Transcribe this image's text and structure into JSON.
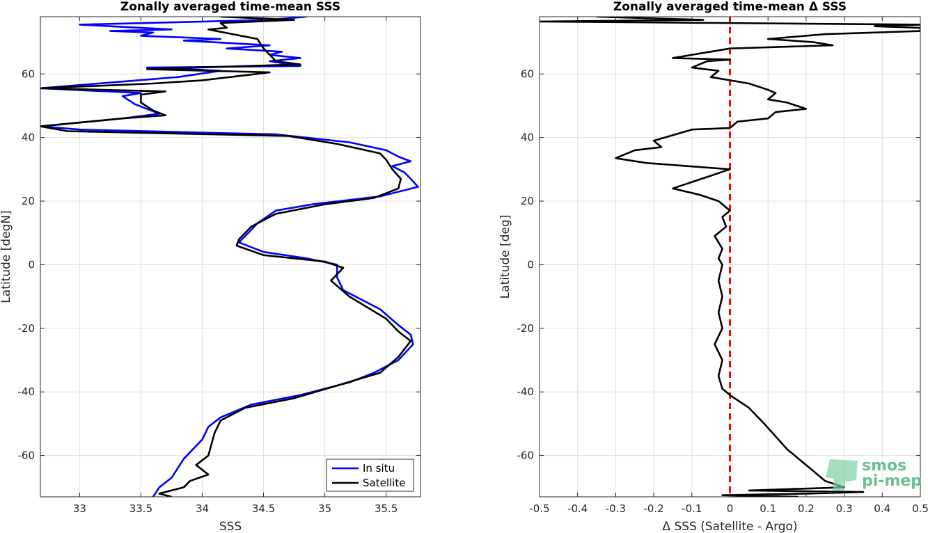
{
  "chart_data": [
    {
      "type": "line",
      "title": "Zonally averaged time-mean SSS",
      "xlabel": "SSS",
      "ylabel": "Latitude [degN]",
      "xlim": [
        32.68,
        35.78
      ],
      "ylim": [
        -73,
        78
      ],
      "xticks": [
        33,
        33.5,
        34,
        34.5,
        35,
        35.5
      ],
      "yticks": [
        -60,
        -40,
        -20,
        0,
        20,
        40,
        60
      ],
      "grid": true,
      "legend_position": "bottom-right",
      "series": [
        {
          "name": "In situ",
          "color": "#0000ff",
          "points": [
            [
              34.85,
              78
            ],
            [
              34.55,
              77
            ],
            [
              33.0,
              75.5
            ],
            [
              33.75,
              74
            ],
            [
              33.25,
              73.5
            ],
            [
              33.6,
              73
            ],
            [
              33.5,
              72
            ],
            [
              34.15,
              71
            ],
            [
              33.85,
              70.5
            ],
            [
              34.55,
              69
            ],
            [
              34.2,
              68
            ],
            [
              34.65,
              67
            ],
            [
              34.55,
              66
            ],
            [
              34.8,
              65
            ],
            [
              34.55,
              64
            ],
            [
              34.8,
              62.5
            ],
            [
              33.55,
              62
            ],
            [
              34.15,
              61
            ],
            [
              33.8,
              59
            ],
            [
              32.68,
              55.5
            ],
            [
              33.5,
              54
            ],
            [
              33.35,
              53
            ],
            [
              33.45,
              50.5
            ],
            [
              33.65,
              47.5
            ],
            [
              33.35,
              46
            ],
            [
              32.68,
              43.5
            ],
            [
              33.0,
              42.5
            ],
            [
              34.6,
              41
            ],
            [
              35.2,
              38.5
            ],
            [
              35.5,
              36
            ],
            [
              35.6,
              34
            ],
            [
              35.7,
              32.5
            ],
            [
              35.55,
              31
            ],
            [
              35.65,
              29
            ],
            [
              35.7,
              27
            ],
            [
              35.76,
              24.5
            ],
            [
              35.45,
              21.5
            ],
            [
              34.9,
              19
            ],
            [
              34.6,
              17
            ],
            [
              34.45,
              13
            ],
            [
              34.4,
              11
            ],
            [
              34.3,
              7
            ],
            [
              34.5,
              4
            ],
            [
              34.85,
              2
            ],
            [
              35.1,
              0
            ],
            [
              35.1,
              -4
            ],
            [
              35.15,
              -8
            ],
            [
              35.45,
              -14
            ],
            [
              35.6,
              -19
            ],
            [
              35.7,
              -22
            ],
            [
              35.72,
              -25
            ],
            [
              35.6,
              -30
            ],
            [
              35.4,
              -34
            ],
            [
              35.2,
              -37
            ],
            [
              34.8,
              -41
            ],
            [
              34.4,
              -44
            ],
            [
              34.15,
              -48
            ],
            [
              34.05,
              -51
            ],
            [
              34.0,
              -55
            ],
            [
              33.85,
              -61
            ],
            [
              33.8,
              -64
            ],
            [
              33.75,
              -67
            ],
            [
              33.65,
              -70
            ],
            [
              33.6,
              -73
            ]
          ]
        },
        {
          "name": "Satellite",
          "color": "#000000",
          "points": [
            [
              34.15,
              78
            ],
            [
              34.75,
              77
            ],
            [
              34.15,
              76
            ],
            [
              34.2,
              74.5
            ],
            [
              34.05,
              74
            ],
            [
              34.45,
              71
            ],
            [
              34.5,
              68
            ],
            [
              34.55,
              66
            ],
            [
              34.6,
              64
            ],
            [
              34.8,
              63
            ],
            [
              33.55,
              61.5
            ],
            [
              34.55,
              60.5
            ],
            [
              34.0,
              58
            ],
            [
              33.6,
              57
            ],
            [
              32.68,
              55.5
            ],
            [
              33.7,
              54.5
            ],
            [
              33.5,
              53.5
            ],
            [
              33.5,
              51
            ],
            [
              33.6,
              48.5
            ],
            [
              33.7,
              47
            ],
            [
              33.35,
              46
            ],
            [
              32.68,
              43.5
            ],
            [
              32.9,
              42
            ],
            [
              34.7,
              40.5
            ],
            [
              35.1,
              38
            ],
            [
              35.45,
              35
            ],
            [
              35.5,
              33
            ],
            [
              35.55,
              30
            ],
            [
              35.62,
              27
            ],
            [
              35.6,
              24
            ],
            [
              35.4,
              21
            ],
            [
              35.0,
              19
            ],
            [
              34.6,
              16
            ],
            [
              34.4,
              12
            ],
            [
              34.3,
              8
            ],
            [
              34.28,
              6
            ],
            [
              34.5,
              3
            ],
            [
              35.0,
              1
            ],
            [
              35.15,
              -1
            ],
            [
              35.05,
              -5
            ],
            [
              35.2,
              -10
            ],
            [
              35.5,
              -17
            ],
            [
              35.6,
              -21
            ],
            [
              35.7,
              -24
            ],
            [
              35.6,
              -29
            ],
            [
              35.45,
              -34
            ],
            [
              35.1,
              -38
            ],
            [
              34.75,
              -42
            ],
            [
              34.35,
              -45
            ],
            [
              34.15,
              -49
            ],
            [
              34.1,
              -53
            ],
            [
              34.05,
              -60
            ],
            [
              33.95,
              -63
            ],
            [
              34.05,
              -66
            ],
            [
              33.9,
              -68
            ],
            [
              33.85,
              -70
            ],
            [
              33.65,
              -72
            ],
            [
              33.75,
              -73
            ]
          ]
        }
      ]
    },
    {
      "type": "line",
      "title": "Zonally averaged time-mean Δ SSS",
      "xlabel": "Δ SSS (Satellite - Argo)",
      "ylabel": "Latitude [deg]",
      "xlim": [
        -0.5,
        0.5
      ],
      "ylim": [
        -73,
        78
      ],
      "xticks": [
        -0.5,
        -0.4,
        -0.3,
        -0.2,
        -0.1,
        0,
        0.1,
        0.2,
        0.3,
        0.4,
        0.5
      ],
      "yticks": [
        -60,
        -40,
        -20,
        0,
        20,
        40,
        60
      ],
      "grid": true,
      "reference_line": {
        "x": 0,
        "color": "#ff0000",
        "style": "dashed"
      },
      "series": [
        {
          "color": "#000000",
          "points": [
            [
              -0.35,
              78
            ],
            [
              -0.07,
              77
            ],
            [
              -0.5,
              76.5
            ],
            [
              0.5,
              75.5
            ],
            [
              0.38,
              75
            ],
            [
              0.5,
              74.5
            ],
            [
              0.5,
              73.5
            ],
            [
              0.25,
              72.5
            ],
            [
              0.1,
              71
            ],
            [
              0.22,
              70
            ],
            [
              0.27,
              69
            ],
            [
              0.0,
              68
            ],
            [
              -0.15,
              65
            ],
            [
              0.0,
              64.5
            ],
            [
              -0.06,
              64
            ],
            [
              -0.1,
              62
            ],
            [
              -0.03,
              61
            ],
            [
              -0.05,
              59
            ],
            [
              0.0,
              58
            ],
            [
              0.05,
              57
            ],
            [
              0.1,
              55
            ],
            [
              0.12,
              54
            ],
            [
              0.1,
              52
            ],
            [
              0.15,
              51
            ],
            [
              0.2,
              49
            ],
            [
              0.12,
              48
            ],
            [
              0.1,
              46
            ],
            [
              0.02,
              45
            ],
            [
              0.0,
              43
            ],
            [
              -0.1,
              42.5
            ],
            [
              -0.2,
              39
            ],
            [
              -0.18,
              37
            ],
            [
              -0.25,
              36
            ],
            [
              -0.3,
              33.5
            ],
            [
              -0.22,
              32
            ],
            [
              0.0,
              30
            ],
            [
              -0.05,
              28
            ],
            [
              -0.1,
              26
            ],
            [
              -0.15,
              24
            ],
            [
              -0.08,
              22
            ],
            [
              -0.03,
              20
            ],
            [
              0.0,
              17
            ],
            [
              -0.02,
              15
            ],
            [
              -0.01,
              12
            ],
            [
              -0.04,
              9
            ],
            [
              -0.02,
              5
            ],
            [
              -0.03,
              2
            ],
            [
              -0.02,
              0
            ],
            [
              -0.03,
              -5
            ],
            [
              -0.02,
              -10
            ],
            [
              -0.03,
              -15
            ],
            [
              -0.02,
              -20
            ],
            [
              -0.04,
              -25
            ],
            [
              -0.02,
              -30
            ],
            [
              -0.03,
              -35
            ],
            [
              -0.02,
              -39
            ],
            [
              0.0,
              -41
            ],
            [
              0.05,
              -45
            ],
            [
              0.09,
              -50
            ],
            [
              0.15,
              -58
            ],
            [
              0.2,
              -63
            ],
            [
              0.25,
              -68
            ],
            [
              0.3,
              -70
            ],
            [
              0.05,
              -71
            ],
            [
              0.35,
              -71.5
            ],
            [
              0.2,
              -72
            ],
            [
              -0.02,
              -72.5
            ],
            [
              0.18,
              -73
            ]
          ]
        }
      ]
    }
  ],
  "watermark": {
    "line1": "smos",
    "line2": "pi-mep"
  }
}
